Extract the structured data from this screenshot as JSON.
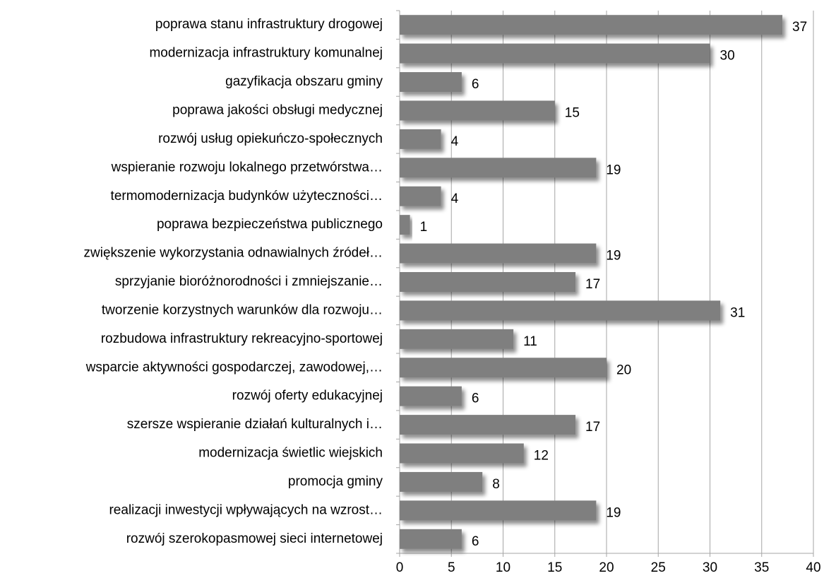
{
  "chart_data": {
    "type": "bar",
    "orientation": "horizontal",
    "color": "#7f7f7f",
    "grid": true,
    "categories": [
      "poprawa stanu infrastruktury drogowej",
      "modernizacja infrastruktury komunalnej",
      "gazyfikacja obszaru gminy",
      "poprawa jakości obsługi medycznej",
      "rozwój usług opiekuńczo-społecznych",
      "wspieranie rozwoju lokalnego przetwórstwa…",
      "termomodernizacja budynków użyteczności…",
      "poprawa bezpieczeństwa publicznego",
      "zwiększenie wykorzystania odnawialnych źródeł…",
      "sprzyjanie bioróżnorodności i zmniejszanie…",
      "tworzenie korzystnych warunków dla rozwoju…",
      "rozbudowa infrastruktury rekreacyjno-sportowej",
      "wsparcie aktywności gospodarczej, zawodowej,…",
      "rozwój oferty edukacyjnej",
      "szersze wspieranie działań kulturalnych i…",
      "modernizacja świetlic wiejskich",
      "promocja gminy",
      "realizacji inwestycji wpływających na wzrost…",
      "rozwój szerokopasmowej sieci internetowej"
    ],
    "values": [
      37,
      30,
      6,
      15,
      4,
      19,
      4,
      1,
      19,
      17,
      31,
      11,
      20,
      6,
      17,
      12,
      8,
      19,
      6
    ],
    "xlim": [
      0,
      40
    ],
    "xticks": [
      0,
      5,
      10,
      15,
      20,
      25,
      30,
      35,
      40
    ]
  }
}
